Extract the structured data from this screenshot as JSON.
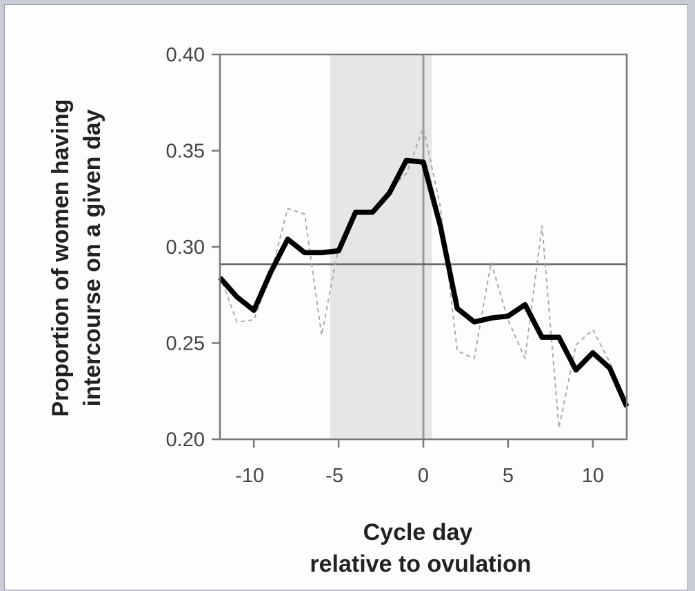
{
  "chart_data": {
    "type": "line",
    "title": "",
    "xlabel": [
      "Cycle day",
      "relative to ovulation"
    ],
    "ylabel": [
      "Proportion of women having",
      "intercourse on a given day"
    ],
    "xlim": [
      -12,
      12
    ],
    "ylim": [
      0.2,
      0.4
    ],
    "xticks": [
      -10,
      -5,
      0,
      5,
      10
    ],
    "yticks": [
      0.2,
      0.25,
      0.3,
      0.35,
      0.4
    ],
    "ytick_labels": [
      "0.20",
      "0.25",
      "0.30",
      "0.35",
      "0.40"
    ],
    "grid": false,
    "shaded_region": {
      "x": [
        -5.5,
        0.5
      ],
      "color": "#e6e6e6"
    },
    "reference_lines": [
      {
        "orientation": "vertical",
        "x": 0,
        "color": "#999999"
      },
      {
        "orientation": "horizontal",
        "y": 0.291,
        "color": "#666666"
      }
    ],
    "series": [
      {
        "style": "solid",
        "color": "#000000",
        "x": [
          -12,
          -11,
          -10,
          -9,
          -8,
          -7,
          -6,
          -5,
          -4,
          -3,
          -2,
          -1,
          0,
          1,
          2,
          3,
          4,
          5,
          6,
          7,
          8,
          9,
          10,
          11,
          12
        ],
        "y": [
          0.284,
          0.274,
          0.267,
          0.287,
          0.304,
          0.297,
          0.297,
          0.298,
          0.318,
          0.318,
          0.328,
          0.345,
          0.344,
          0.311,
          0.268,
          0.261,
          0.263,
          0.264,
          0.27,
          0.253,
          0.253,
          0.236,
          0.245,
          0.237,
          0.217
        ]
      },
      {
        "style": "dashed",
        "color": "#aaaaaa",
        "x": [
          -12,
          -11,
          -10,
          -9,
          -8,
          -7,
          -6,
          -5,
          -4,
          -3,
          -2,
          -1,
          0,
          1,
          2,
          3,
          4,
          5,
          6,
          7,
          8,
          9,
          10,
          11,
          12
        ],
        "y": [
          0.285,
          0.261,
          0.262,
          0.286,
          0.32,
          0.317,
          0.254,
          0.3,
          0.317,
          0.318,
          0.33,
          0.338,
          0.362,
          0.321,
          0.246,
          0.242,
          0.292,
          0.262,
          0.242,
          0.311,
          0.206,
          0.249,
          0.257,
          0.24,
          0.218
        ]
      }
    ]
  }
}
